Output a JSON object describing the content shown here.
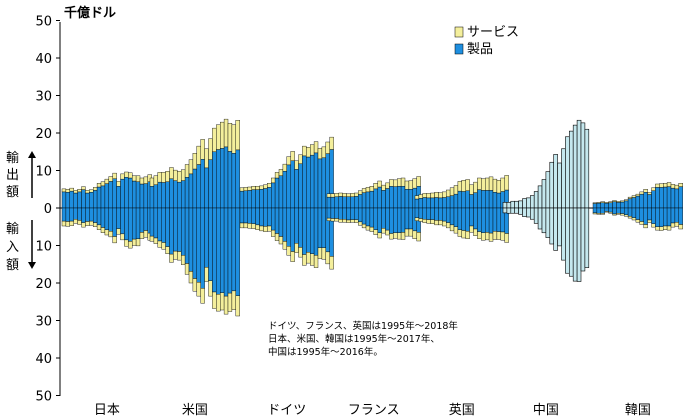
{
  "chart_data": {
    "type": "bar",
    "unit_label": "千億ドル",
    "ylim": [
      -50,
      50
    ],
    "y_ticks": [
      50,
      40,
      30,
      20,
      10,
      0,
      10,
      20,
      30,
      40,
      50
    ],
    "grid": false,
    "legend": {
      "position": "top-right",
      "items": [
        {
          "name": "サービス",
          "color": "#f4ef9c"
        },
        {
          "name": "製品",
          "color": "#1e8fe0"
        }
      ]
    },
    "side_labels": {
      "export": "輸出額",
      "import": "輸入額"
    },
    "note": [
      "ドイツ、フランス、英国は1995年～2018年",
      "日本、米国、韓国は1995年～2017年、",
      "中国は1995年～2016年。"
    ],
    "colors": {
      "goods": "#1e8fe0",
      "services": "#f4ef9c",
      "china": "#c5e8ee",
      "outline": "#000000"
    },
    "series": [
      {
        "category": "日本",
        "years": "1995-2017",
        "export_goods": [
          4.3,
          4.2,
          4.5,
          4.0,
          4.3,
          4.9,
          4.0,
          4.2,
          4.7,
          5.6,
          5.9,
          6.5,
          7.1,
          7.8,
          5.8,
          7.7,
          8.2,
          8.0,
          7.2,
          7.0,
          6.4,
          6.5,
          7.0
        ],
        "export_services": [
          0.8,
          0.8,
          0.8,
          0.7,
          0.7,
          0.8,
          0.7,
          0.7,
          0.8,
          1.0,
          1.1,
          1.2,
          1.3,
          1.5,
          1.3,
          1.4,
          1.4,
          1.4,
          1.4,
          1.6,
          1.6,
          1.8,
          1.9
        ],
        "import_goods": [
          3.5,
          3.6,
          3.5,
          3.0,
          3.3,
          3.9,
          3.6,
          3.5,
          3.9,
          4.5,
          5.2,
          5.8,
          6.2,
          7.6,
          5.5,
          6.9,
          8.5,
          8.9,
          8.3,
          8.2,
          6.5,
          6.0,
          6.7
        ],
        "import_services": [
          1.3,
          1.3,
          1.2,
          1.1,
          1.1,
          1.2,
          1.1,
          1.1,
          1.1,
          1.3,
          1.4,
          1.4,
          1.5,
          1.7,
          1.5,
          1.6,
          1.7,
          1.8,
          1.7,
          1.9,
          1.7,
          1.8,
          1.9
        ]
      },
      {
        "category": "米国",
        "years": "1995-2017",
        "export_goods": [
          5.8,
          6.2,
          6.9,
          6.8,
          7.0,
          7.8,
          7.3,
          6.9,
          7.3,
          8.2,
          9.1,
          10.4,
          11.6,
          13.0,
          10.7,
          12.9,
          15.0,
          15.6,
          15.9,
          16.3,
          15.1,
          14.6,
          15.5
        ],
        "export_services": [
          2.2,
          2.4,
          2.6,
          2.7,
          2.8,
          3.0,
          2.8,
          2.9,
          2.9,
          3.4,
          3.8,
          4.2,
          4.9,
          5.3,
          5.1,
          5.6,
          6.3,
          6.6,
          7.0,
          7.4,
          7.5,
          7.6,
          7.9
        ],
        "import_goods": [
          7.5,
          8.0,
          8.8,
          9.2,
          10.3,
          12.3,
          11.5,
          11.6,
          12.6,
          14.8,
          16.9,
          18.8,
          19.8,
          21.4,
          15.8,
          19.4,
          22.4,
          23.0,
          22.6,
          23.5,
          22.7,
          22.1,
          23.4
        ],
        "import_services": [
          1.4,
          1.5,
          1.7,
          1.8,
          1.9,
          2.2,
          2.2,
          2.3,
          2.5,
          2.9,
          3.1,
          3.4,
          3.7,
          4.0,
          3.8,
          4.1,
          4.4,
          4.5,
          4.6,
          4.8,
          4.9,
          5.0,
          5.4
        ]
      },
      {
        "category": "ドイツ",
        "years": "1995-2018",
        "export_goods": [
          4.5,
          4.6,
          4.7,
          4.9,
          4.9,
          5.0,
          5.2,
          5.5,
          6.7,
          8.0,
          8.6,
          9.8,
          11.5,
          12.6,
          10.3,
          11.8,
          13.9,
          13.6,
          14.1,
          14.7,
          13.1,
          13.4,
          14.5,
          15.6
        ],
        "export_services": [
          0.9,
          0.9,
          0.9,
          0.9,
          0.9,
          0.9,
          1.0,
          1.1,
          1.3,
          1.5,
          1.7,
          1.9,
          2.2,
          2.5,
          2.3,
          2.4,
          2.6,
          2.6,
          2.8,
          3.0,
          2.8,
          2.9,
          3.1,
          3.3
        ],
        "import_goods": [
          4.0,
          4.0,
          4.1,
          4.2,
          4.5,
          4.8,
          4.9,
          4.8,
          5.9,
          6.8,
          7.6,
          8.9,
          10.2,
          11.6,
          9.4,
          10.5,
          12.4,
          11.8,
          12.2,
          12.6,
          10.6,
          10.6,
          11.7,
          12.9
        ],
        "import_services": [
          1.3,
          1.3,
          1.3,
          1.3,
          1.3,
          1.3,
          1.4,
          1.4,
          1.7,
          1.9,
          2.0,
          2.1,
          2.4,
          2.7,
          2.5,
          2.6,
          2.9,
          2.9,
          3.1,
          3.3,
          2.9,
          3.1,
          3.2,
          3.4
        ]
      },
      {
        "category": "フランス",
        "years": "1995-2018",
        "export_goods": [
          2.9,
          2.9,
          3.0,
          3.1,
          3.0,
          3.0,
          3.0,
          3.1,
          3.6,
          4.1,
          4.3,
          4.5,
          5.1,
          5.6,
          4.7,
          5.2,
          5.8,
          5.7,
          5.8,
          5.8,
          5.0,
          5.0,
          5.3,
          5.8
        ],
        "export_services": [
          0.9,
          0.9,
          0.9,
          0.9,
          0.9,
          0.8,
          0.9,
          0.9,
          1.0,
          1.1,
          1.2,
          1.3,
          1.5,
          1.6,
          1.4,
          1.5,
          1.8,
          1.8,
          2.0,
          2.2,
          2.2,
          2.3,
          2.5,
          2.6
        ],
        "import_goods": [
          2.7,
          2.8,
          2.8,
          3.0,
          3.0,
          3.2,
          3.1,
          3.1,
          3.7,
          4.3,
          4.8,
          5.1,
          5.8,
          6.6,
          5.4,
          5.9,
          6.8,
          6.6,
          6.6,
          6.5,
          5.6,
          5.6,
          6.1,
          6.5
        ],
        "import_services": [
          0.7,
          0.7,
          0.7,
          0.8,
          0.8,
          0.7,
          0.7,
          0.8,
          0.9,
          1.0,
          1.1,
          1.2,
          1.3,
          1.4,
          1.3,
          1.3,
          1.5,
          1.5,
          1.7,
          1.9,
          1.9,
          1.9,
          2.1,
          2.3
        ]
      },
      {
        "category": "英国",
        "years": "1995-2018",
        "export_goods": [
          2.4,
          2.6,
          2.8,
          2.7,
          2.7,
          2.8,
          2.7,
          2.8,
          3.0,
          3.3,
          3.7,
          4.5,
          4.4,
          4.6,
          3.6,
          4.1,
          4.9,
          4.7,
          4.7,
          4.7,
          4.2,
          4.0,
          4.4,
          4.8
        ],
        "export_services": [
          0.9,
          1.0,
          1.1,
          1.2,
          1.3,
          1.4,
          1.4,
          1.5,
          1.8,
          2.1,
          2.3,
          2.6,
          3.0,
          3.0,
          2.6,
          2.8,
          3.1,
          3.1,
          3.3,
          3.6,
          3.5,
          3.4,
          3.6,
          3.9
        ],
        "import_goods": [
          2.6,
          2.8,
          3.0,
          3.1,
          3.1,
          3.3,
          3.3,
          3.5,
          3.9,
          4.5,
          5.0,
          5.8,
          6.0,
          6.2,
          4.8,
          5.6,
          6.3,
          6.6,
          6.5,
          6.7,
          6.2,
          6.3,
          6.4,
          6.8
        ],
        "import_services": [
          0.8,
          0.8,
          0.9,
          1.0,
          1.1,
          1.2,
          1.2,
          1.3,
          1.4,
          1.6,
          1.7,
          1.8,
          2.0,
          2.0,
          1.7,
          1.8,
          1.9,
          2.0,
          2.0,
          2.2,
          2.2,
          2.1,
          2.2,
          2.4
        ]
      },
      {
        "category": "中国",
        "years": "1995-2016",
        "export_total": [
          1.5,
          1.5,
          1.8,
          1.8,
          1.9,
          2.5,
          2.7,
          3.3,
          4.4,
          5.9,
          7.6,
          9.7,
          12.2,
          14.3,
          12.0,
          15.8,
          19.0,
          20.5,
          22.1,
          23.4,
          22.7,
          21.0
        ],
        "import_total": [
          1.3,
          1.4,
          1.4,
          1.4,
          1.7,
          2.3,
          2.4,
          3.0,
          4.1,
          5.6,
          6.6,
          7.9,
          9.6,
          11.3,
          10.1,
          13.9,
          17.4,
          18.2,
          19.5,
          19.6,
          16.8,
          15.9
        ]
      },
      {
        "category": "韓国",
        "years": "1995-2017",
        "export_goods": [
          1.2,
          1.3,
          1.4,
          1.3,
          1.4,
          1.7,
          1.5,
          1.6,
          1.9,
          2.5,
          2.8,
          3.2,
          3.7,
          4.2,
          3.6,
          4.6,
          5.5,
          5.5,
          5.6,
          5.7,
          5.3,
          5.1,
          5.7
        ],
        "export_services": [
          0.2,
          0.2,
          0.3,
          0.2,
          0.3,
          0.3,
          0.3,
          0.3,
          0.3,
          0.4,
          0.5,
          0.5,
          0.6,
          0.8,
          0.6,
          0.8,
          0.9,
          1.0,
          1.0,
          1.1,
          1.0,
          1.0,
          0.9
        ],
        "import_goods": [
          1.3,
          1.4,
          1.4,
          0.9,
          1.1,
          1.6,
          1.4,
          1.5,
          1.8,
          2.2,
          2.6,
          3.1,
          3.6,
          4.4,
          3.2,
          4.2,
          5.0,
          5.0,
          4.8,
          4.8,
          4.0,
          3.8,
          4.4
        ],
        "import_services": [
          0.3,
          0.3,
          0.3,
          0.2,
          0.3,
          0.3,
          0.3,
          0.4,
          0.4,
          0.5,
          0.6,
          0.7,
          0.8,
          0.9,
          0.7,
          0.9,
          0.9,
          1.0,
          1.0,
          1.1,
          1.1,
          1.1,
          1.2
        ]
      }
    ]
  }
}
